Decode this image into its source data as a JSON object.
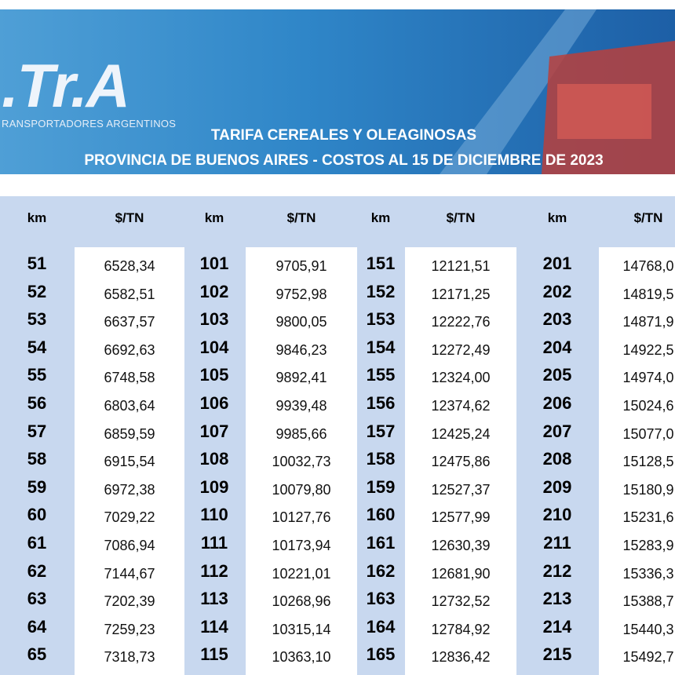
{
  "header": {
    "logo": ".Tr.A",
    "logo_subtitle": "RANSPORTADORES ARGENTINOS",
    "title": "TARIFA CEREALES Y OLEAGINOSAS",
    "subtitle": "PROVINCIA DE BUENOS AIRES - COSTOS AL 15 DE DICIEMBRE DE 2023"
  },
  "table": {
    "headers": [
      "km",
      "$/TN",
      "km",
      "$/TN",
      "km",
      "$/TN",
      "km",
      "$/TN"
    ],
    "rows": [
      [
        "51",
        "6528,34",
        "101",
        "9705,91",
        "151",
        "12121,51",
        "201",
        "14768,0"
      ],
      [
        "52",
        "6582,51",
        "102",
        "9752,98",
        "152",
        "12171,25",
        "202",
        "14819,5"
      ],
      [
        "53",
        "6637,57",
        "103",
        "9800,05",
        "153",
        "12222,76",
        "203",
        "14871,9"
      ],
      [
        "54",
        "6692,63",
        "104",
        "9846,23",
        "154",
        "12272,49",
        "204",
        "14922,5"
      ],
      [
        "55",
        "6748,58",
        "105",
        "9892,41",
        "155",
        "12324,00",
        "205",
        "14974,0"
      ],
      [
        "56",
        "6803,64",
        "106",
        "9939,48",
        "156",
        "12374,62",
        "206",
        "15024,6"
      ],
      [
        "57",
        "6859,59",
        "107",
        "9985,66",
        "157",
        "12425,24",
        "207",
        "15077,0"
      ],
      [
        "58",
        "6915,54",
        "108",
        "10032,73",
        "158",
        "12475,86",
        "208",
        "15128,5"
      ],
      [
        "59",
        "6972,38",
        "109",
        "10079,80",
        "159",
        "12527,37",
        "209",
        "15180,9"
      ],
      [
        "60",
        "7029,22",
        "110",
        "10127,76",
        "160",
        "12577,99",
        "210",
        "15231,6"
      ],
      [
        "61",
        "7086,94",
        "111",
        "10173,94",
        "161",
        "12630,39",
        "211",
        "15283,9"
      ],
      [
        "62",
        "7144,67",
        "112",
        "10221,01",
        "162",
        "12681,90",
        "212",
        "15336,3"
      ],
      [
        "63",
        "7202,39",
        "113",
        "10268,96",
        "163",
        "12732,52",
        "213",
        "15388,7"
      ],
      [
        "64",
        "7259,23",
        "114",
        "10315,14",
        "164",
        "12784,92",
        "214",
        "15440,3"
      ],
      [
        "65",
        "7318,73",
        "115",
        "10363,10",
        "165",
        "12836,42",
        "215",
        "15492,7"
      ]
    ]
  }
}
